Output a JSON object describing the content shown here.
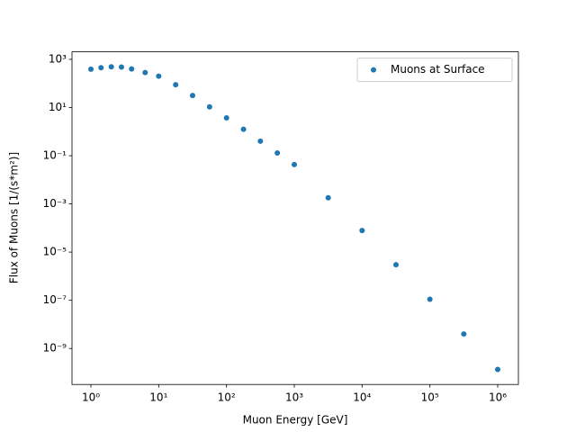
{
  "chart_data": {
    "type": "scatter",
    "xlabel": "Muon Energy [GeV]",
    "ylabel": "Flux of Muons [1/(s*m²)]",
    "log_x": true,
    "log_y": true,
    "legend": "upper right",
    "series": [
      {
        "name": "Muons at Surface",
        "color": "#1f77b4",
        "x": [
          1,
          1.41,
          2,
          2.82,
          3.98,
          6.31,
          10,
          17.8,
          31.6,
          56.2,
          100,
          178,
          316,
          562,
          1000,
          3162,
          10000,
          31623,
          100000,
          316228,
          1000000
        ],
        "values": [
          389,
          447,
          490,
          479,
          398,
          282,
          200,
          89,
          31.6,
          10.7,
          3.7,
          1.26,
          0.4,
          0.13,
          0.043,
          0.0018,
          7.9e-05,
          3e-06,
          1.1e-07,
          4e-09,
          1.35e-10
        ]
      }
    ],
    "xlim": [
      0.526,
      2020000
    ],
    "ylim": [
      3.2e-11,
      2050
    ],
    "xticks": [
      {
        "value": 1,
        "label": "10⁰"
      },
      {
        "value": 10,
        "label": "10¹"
      },
      {
        "value": 100,
        "label": "10²"
      },
      {
        "value": 1000,
        "label": "10³"
      },
      {
        "value": 10000,
        "label": "10⁴"
      },
      {
        "value": 100000,
        "label": "10⁵"
      },
      {
        "value": 1000000,
        "label": "10⁶"
      }
    ],
    "yticks": [
      {
        "value": 1e-09,
        "label": "10⁻⁹"
      },
      {
        "value": 1e-07,
        "label": "10⁻⁷"
      },
      {
        "value": 1e-05,
        "label": "10⁻⁵"
      },
      {
        "value": 0.001,
        "label": "10⁻³"
      },
      {
        "value": 0.1,
        "label": "10⁻¹"
      },
      {
        "value": 10,
        "label": "10¹"
      },
      {
        "value": 1000,
        "label": "10³"
      }
    ]
  }
}
